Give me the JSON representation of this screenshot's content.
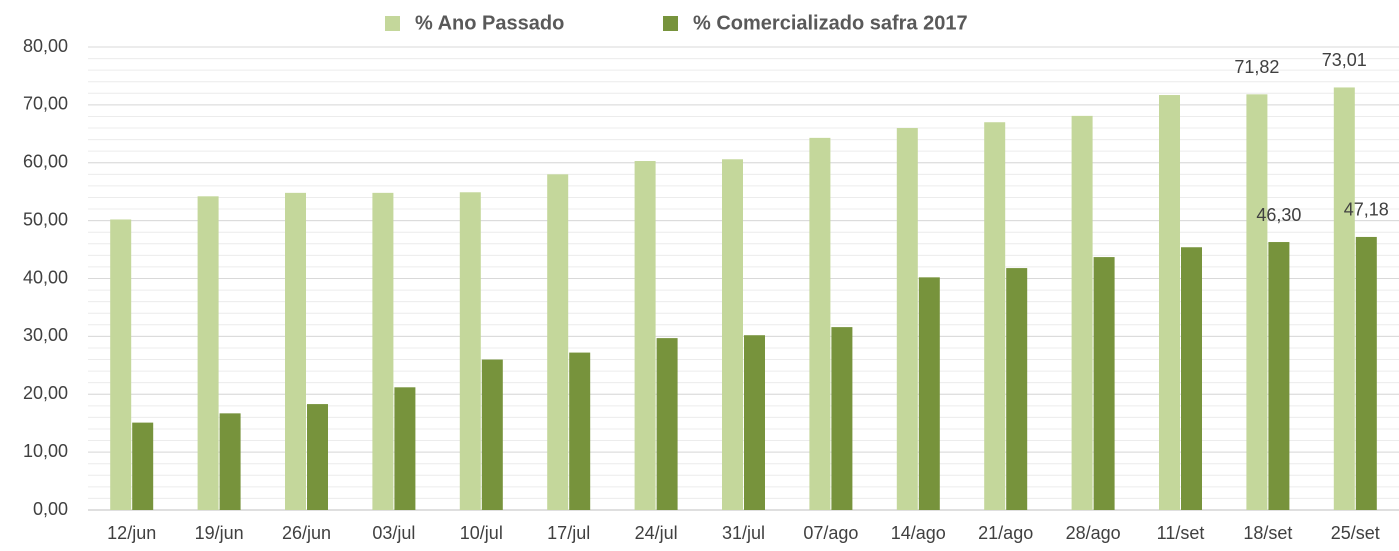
{
  "chart_data": {
    "type": "bar",
    "categories": [
      "12/jun",
      "19/jun",
      "26/jun",
      "03/jul",
      "10/jul",
      "17/jul",
      "24/jul",
      "31/jul",
      "07/ago",
      "14/ago",
      "21/ago",
      "28/ago",
      "11/set",
      "18/set",
      "25/set"
    ],
    "series": [
      {
        "name": "% Ano Passado",
        "color": "#c4d79b",
        "values": [
          50.2,
          54.2,
          54.8,
          54.8,
          54.9,
          58.0,
          60.3,
          60.6,
          64.3,
          66.0,
          67.0,
          68.1,
          71.7,
          71.82,
          73.01
        ],
        "value_labels": [
          null,
          null,
          null,
          null,
          null,
          null,
          null,
          null,
          null,
          null,
          null,
          null,
          null,
          "71,82",
          "73,01"
        ]
      },
      {
        "name": "% Comercializado safra 2017",
        "color": "#77933c",
        "values": [
          15.1,
          16.7,
          18.3,
          21.2,
          26.0,
          27.2,
          29.7,
          30.2,
          31.6,
          40.2,
          41.8,
          43.7,
          45.4,
          46.3,
          47.18
        ],
        "value_labels": [
          null,
          null,
          null,
          null,
          null,
          null,
          null,
          null,
          null,
          null,
          null,
          null,
          null,
          "46,30",
          "47,18"
        ]
      }
    ],
    "ylim": [
      0,
      80
    ],
    "yticks": [
      {
        "value": 0,
        "label": "0,00"
      },
      {
        "value": 10,
        "label": "10,00"
      },
      {
        "value": 20,
        "label": "20,00"
      },
      {
        "value": 30,
        "label": "30,00"
      },
      {
        "value": 40,
        "label": "40,00"
      },
      {
        "value": 50,
        "label": "50,00"
      },
      {
        "value": 60,
        "label": "60,00"
      },
      {
        "value": 70,
        "label": "70,00"
      },
      {
        "value": 80,
        "label": "80,00"
      }
    ],
    "grid": true,
    "minor_grid": true,
    "legend": "top"
  }
}
